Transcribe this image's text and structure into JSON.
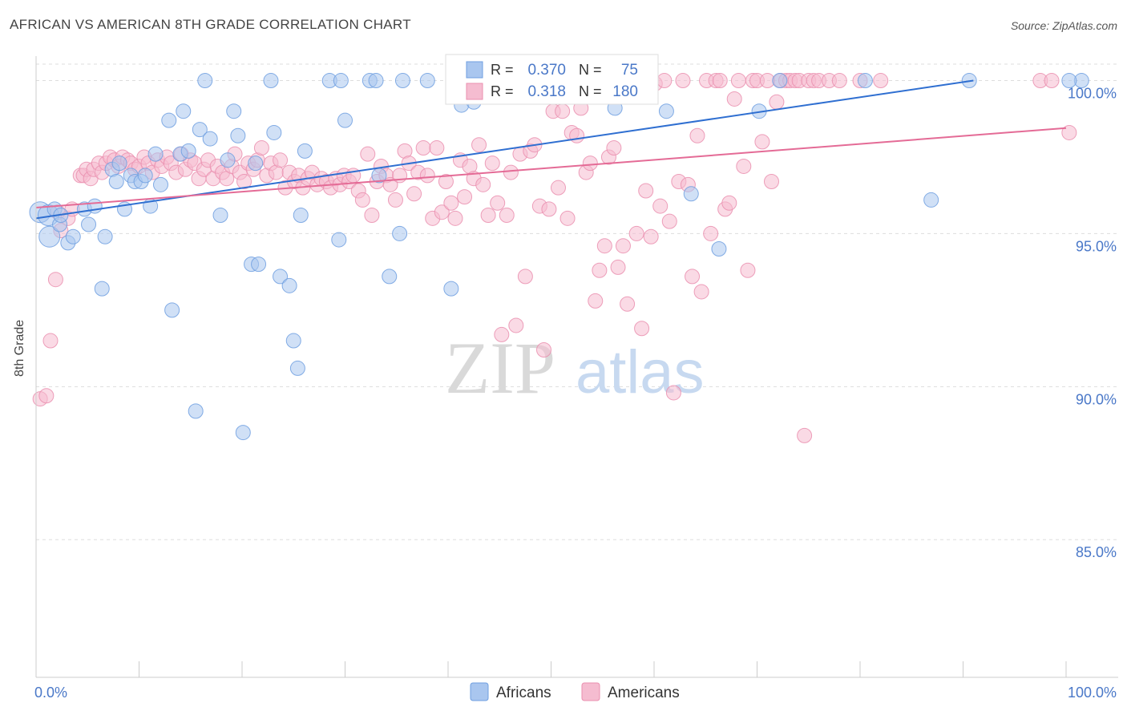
{
  "title": "AFRICAN VS AMERICAN 8TH GRADE CORRELATION CHART",
  "source": "Source: ZipAtlas.com",
  "watermark": {
    "zip": "ZIP",
    "atlas": "atlas"
  },
  "colors": {
    "blue": "#6f9fe0",
    "blue_fill": "#a9c6ef",
    "blue_line": "#2f6fd1",
    "pink": "#ea8faf",
    "pink_fill": "#f5bcd0",
    "pink_line": "#e46b96",
    "tick_text": "#4a78c8",
    "grid": "#dddddd"
  },
  "legend": {
    "rows": [
      {
        "r_label": "R =",
        "r_value": "0.370",
        "n_label": "N =",
        "n_value": "75"
      },
      {
        "r_label": "R =",
        "r_value": "0.318",
        "n_label": "N =",
        "n_value": "180"
      }
    ]
  },
  "chart_data": {
    "type": "scatter",
    "title": "AFRICAN VS AMERICAN 8TH GRADE CORRELATION CHART",
    "xlabel": "",
    "ylabel": "8th Grade",
    "xlim": [
      0,
      100
    ],
    "ylim": [
      80.5,
      100.8
    ],
    "x_tick_labels": [
      "0.0%",
      "100.0%"
    ],
    "y_ticks": [
      85,
      90,
      95,
      100
    ],
    "y_tick_labels": [
      "85.0%",
      "90.0%",
      "95.0%",
      "100.0%"
    ],
    "grid": true,
    "legend_position": "bottom-center",
    "series": [
      {
        "name": "Africans",
        "r": 0.37,
        "n": 75,
        "trend": {
          "x": [
            0,
            91
          ],
          "y": [
            95.5,
            100.0
          ]
        },
        "points": [
          [
            0.3,
            95.7
          ],
          [
            1.2,
            95.6
          ],
          [
            1.3,
            94.9
          ],
          [
            1.8,
            95.8
          ],
          [
            2.3,
            95.3
          ],
          [
            2.4,
            95.6
          ],
          [
            3.1,
            94.7
          ],
          [
            3.6,
            94.9
          ],
          [
            4.7,
            95.8
          ],
          [
            5.1,
            95.3
          ],
          [
            5.7,
            95.9
          ],
          [
            6.4,
            93.2
          ],
          [
            6.7,
            94.9
          ],
          [
            7.4,
            97.1
          ],
          [
            7.8,
            96.7
          ],
          [
            8.1,
            97.3
          ],
          [
            8.6,
            95.8
          ],
          [
            9.2,
            96.9
          ],
          [
            9.6,
            96.7
          ],
          [
            10.2,
            96.7
          ],
          [
            10.6,
            96.9
          ],
          [
            11.1,
            95.9
          ],
          [
            11.6,
            97.6
          ],
          [
            12.1,
            96.6
          ],
          [
            12.9,
            98.7
          ],
          [
            13.2,
            92.5
          ],
          [
            14,
            97.6
          ],
          [
            14.3,
            99.0
          ],
          [
            14.8,
            97.7
          ],
          [
            15.5,
            89.2
          ],
          [
            15.9,
            98.4
          ],
          [
            16.4,
            100.0
          ],
          [
            16.9,
            98.1
          ],
          [
            17.9,
            95.6
          ],
          [
            18.6,
            97.4
          ],
          [
            19.2,
            99.0
          ],
          [
            19.6,
            98.2
          ],
          [
            20.1,
            88.5
          ],
          [
            20.9,
            94.0
          ],
          [
            21.3,
            97.3
          ],
          [
            21.6,
            94.0
          ],
          [
            22.8,
            100.0
          ],
          [
            23.1,
            98.3
          ],
          [
            23.7,
            93.6
          ],
          [
            24.6,
            93.3
          ],
          [
            25,
            91.5
          ],
          [
            25.4,
            90.6
          ],
          [
            25.7,
            95.6
          ],
          [
            26.1,
            97.7
          ],
          [
            28.5,
            100.0
          ],
          [
            29.4,
            94.8
          ],
          [
            29.6,
            100.0
          ],
          [
            30,
            98.7
          ],
          [
            32.4,
            100.0
          ],
          [
            33.0,
            100.0
          ],
          [
            33.3,
            96.9
          ],
          [
            34.3,
            93.6
          ],
          [
            35.3,
            95.0
          ],
          [
            35.6,
            100.0
          ],
          [
            38,
            100.0
          ],
          [
            40.3,
            93.2
          ],
          [
            41.3,
            99.2
          ],
          [
            42.5,
            99.3
          ],
          [
            52.9,
            99.9
          ],
          [
            56.2,
            99.1
          ],
          [
            61.2,
            99.0
          ],
          [
            63.6,
            96.3
          ],
          [
            66.3,
            94.5
          ],
          [
            70.2,
            99.0
          ],
          [
            72.2,
            100.0
          ],
          [
            80.5,
            100.0
          ],
          [
            86.9,
            96.1
          ],
          [
            90.6,
            100.0
          ],
          [
            101.5,
            100.0
          ],
          [
            100.3,
            100.0
          ]
        ]
      },
      {
        "name": "Americans",
        "r": 0.318,
        "n": 180,
        "trend": {
          "x": [
            0,
            100
          ],
          "y": [
            95.85,
            98.45
          ]
        },
        "points": [
          [
            0.4,
            89.6
          ],
          [
            1.0,
            89.7
          ],
          [
            1.4,
            91.5
          ],
          [
            1.9,
            93.5
          ],
          [
            2.1,
            95.7
          ],
          [
            2.4,
            95.1
          ],
          [
            3.1,
            95.5
          ],
          [
            3.5,
            95.8
          ],
          [
            4.3,
            96.9
          ],
          [
            4.6,
            96.9
          ],
          [
            4.9,
            97.1
          ],
          [
            5.3,
            96.8
          ],
          [
            5.6,
            97.1
          ],
          [
            6.1,
            97.3
          ],
          [
            6.4,
            97.0
          ],
          [
            6.8,
            97.3
          ],
          [
            7.2,
            97.5
          ],
          [
            7.6,
            97.4
          ],
          [
            8.0,
            97.2
          ],
          [
            8.4,
            97.5
          ],
          [
            8.9,
            97.4
          ],
          [
            9.2,
            97.3
          ],
          [
            9.6,
            97.1
          ],
          [
            10.0,
            97.2
          ],
          [
            10.5,
            97.5
          ],
          [
            10.9,
            97.3
          ],
          [
            11.3,
            97.0
          ],
          [
            11.8,
            97.4
          ],
          [
            12.2,
            97.2
          ],
          [
            12.7,
            97.5
          ],
          [
            13.1,
            97.3
          ],
          [
            13.6,
            97.0
          ],
          [
            14.1,
            97.6
          ],
          [
            14.5,
            97.1
          ],
          [
            15.0,
            97.4
          ],
          [
            15.4,
            97.3
          ],
          [
            15.8,
            96.8
          ],
          [
            16.3,
            97.1
          ],
          [
            16.7,
            97.4
          ],
          [
            17.2,
            96.8
          ],
          [
            17.6,
            97.2
          ],
          [
            18.1,
            97.0
          ],
          [
            18.5,
            96.8
          ],
          [
            19.0,
            97.2
          ],
          [
            19.3,
            97.6
          ],
          [
            19.8,
            97.0
          ],
          [
            20.2,
            96.7
          ],
          [
            20.6,
            97.3
          ],
          [
            21.1,
            97.1
          ],
          [
            21.5,
            97.4
          ],
          [
            21.9,
            97.8
          ],
          [
            22.4,
            96.9
          ],
          [
            22.8,
            97.3
          ],
          [
            23.3,
            97.0
          ],
          [
            23.7,
            97.4
          ],
          [
            24.2,
            96.5
          ],
          [
            24.6,
            97.0
          ],
          [
            25.1,
            96.7
          ],
          [
            25.5,
            96.9
          ],
          [
            25.9,
            96.5
          ],
          [
            26.4,
            96.8
          ],
          [
            26.8,
            97.0
          ],
          [
            27.3,
            96.6
          ],
          [
            27.7,
            96.8
          ],
          [
            28.2,
            96.7
          ],
          [
            28.6,
            96.5
          ],
          [
            29.1,
            96.8
          ],
          [
            29.5,
            96.6
          ],
          [
            29.9,
            96.9
          ],
          [
            30.4,
            96.7
          ],
          [
            30.8,
            96.9
          ],
          [
            31.3,
            96.4
          ],
          [
            31.7,
            96.1
          ],
          [
            32.2,
            97.6
          ],
          [
            32.6,
            95.6
          ],
          [
            33.1,
            96.7
          ],
          [
            33.5,
            97.2
          ],
          [
            34.0,
            96.9
          ],
          [
            34.4,
            96.6
          ],
          [
            34.9,
            96.1
          ],
          [
            35.3,
            96.9
          ],
          [
            35.8,
            97.7
          ],
          [
            36.2,
            97.3
          ],
          [
            36.7,
            96.3
          ],
          [
            37.1,
            97.0
          ],
          [
            37.6,
            97.8
          ],
          [
            38.0,
            96.9
          ],
          [
            38.5,
            95.5
          ],
          [
            38.9,
            97.8
          ],
          [
            39.4,
            95.7
          ],
          [
            39.8,
            96.7
          ],
          [
            40.3,
            96.0
          ],
          [
            40.7,
            95.5
          ],
          [
            41.2,
            97.4
          ],
          [
            41.6,
            96.2
          ],
          [
            42.1,
            97.2
          ],
          [
            42.5,
            96.8
          ],
          [
            43.0,
            97.9
          ],
          [
            43.4,
            96.6
          ],
          [
            43.9,
            95.6
          ],
          [
            44.3,
            97.3
          ],
          [
            44.8,
            96.0
          ],
          [
            45.2,
            91.7
          ],
          [
            45.7,
            95.6
          ],
          [
            46.1,
            97.0
          ],
          [
            46.6,
            92.0
          ],
          [
            47.0,
            97.6
          ],
          [
            47.5,
            93.6
          ],
          [
            48.0,
            97.7
          ],
          [
            48.4,
            97.9
          ],
          [
            48.9,
            95.9
          ],
          [
            49.3,
            91.2
          ],
          [
            49.8,
            95.8
          ],
          [
            50.2,
            99.0
          ],
          [
            50.7,
            96.5
          ],
          [
            51.1,
            99.0
          ],
          [
            51.6,
            95.5
          ],
          [
            52.0,
            98.3
          ],
          [
            52.5,
            98.2
          ],
          [
            52.9,
            99.1
          ],
          [
            53.4,
            97.0
          ],
          [
            53.8,
            97.3
          ],
          [
            54.3,
            92.8
          ],
          [
            54.7,
            93.8
          ],
          [
            55.2,
            94.6
          ],
          [
            55.6,
            97.5
          ],
          [
            56.1,
            97.8
          ],
          [
            56.5,
            93.9
          ],
          [
            57.0,
            94.6
          ],
          [
            57.4,
            92.7
          ],
          [
            57.9,
            100.0
          ],
          [
            58.3,
            95.0
          ],
          [
            58.8,
            91.9
          ],
          [
            59.2,
            96.4
          ],
          [
            59.7,
            94.9
          ],
          [
            60.1,
            99.9
          ],
          [
            60.6,
            95.9
          ],
          [
            61.0,
            100.0
          ],
          [
            61.5,
            95.4
          ],
          [
            61.9,
            89.8
          ],
          [
            62.4,
            96.7
          ],
          [
            62.8,
            100.0
          ],
          [
            63.3,
            96.6
          ],
          [
            63.7,
            93.6
          ],
          [
            64.2,
            98.2
          ],
          [
            64.6,
            93.1
          ],
          [
            65.1,
            100.0
          ],
          [
            65.5,
            95.0
          ],
          [
            66.0,
            100.0
          ],
          [
            66.4,
            100.0
          ],
          [
            66.9,
            95.8
          ],
          [
            67.3,
            96.0
          ],
          [
            67.8,
            99.4
          ],
          [
            68.2,
            100.0
          ],
          [
            68.7,
            97.2
          ],
          [
            69.1,
            93.8
          ],
          [
            69.6,
            100.0
          ],
          [
            70.0,
            100.0
          ],
          [
            70.5,
            98.0
          ],
          [
            71.0,
            100.0
          ],
          [
            71.4,
            96.7
          ],
          [
            71.9,
            99.3
          ],
          [
            72.3,
            100.0
          ],
          [
            72.8,
            100.0
          ],
          [
            73.2,
            100.0
          ],
          [
            73.7,
            100.0
          ],
          [
            74.1,
            100.0
          ],
          [
            74.6,
            88.4
          ],
          [
            75.0,
            100.0
          ],
          [
            75.5,
            100.0
          ],
          [
            76.0,
            100.0
          ],
          [
            77.0,
            100.0
          ],
          [
            78.0,
            100.0
          ],
          [
            80.0,
            100.0
          ],
          [
            82.0,
            100.0
          ],
          [
            100.3,
            98.3
          ],
          [
            97.5,
            100.0
          ],
          [
            98.6,
            100.0
          ]
        ]
      }
    ]
  }
}
